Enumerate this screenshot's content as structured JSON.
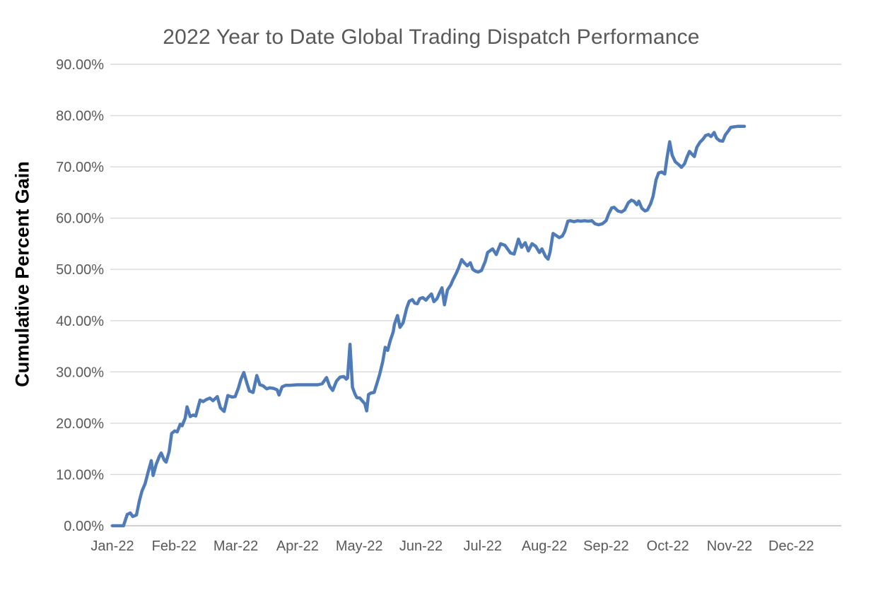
{
  "chart": {
    "title": "2022 Year to Date Global Trading Dispatch Performance",
    "ylabel": "Cumulative Percent Gain"
  },
  "colors": {
    "line": "#4f7bb8",
    "gridline": "#d9d9d9",
    "axis_line": "#bfbfbf",
    "title_text": "#595959",
    "tick_text": "#595959",
    "ylabel_text": "#000000",
    "background": "#ffffff"
  },
  "chart_data": {
    "type": "line",
    "title": "2022 Year to Date Global Trading Dispatch Performance",
    "xlabel": "",
    "ylabel": "Cumulative Percent Gain",
    "x_unit": "months since Jan-22 tick (0 = Jan-22, 11 = Dec-22)",
    "y_unit": "percent",
    "xlim": [
      -0.04,
      11.82
    ],
    "ylim": [
      0,
      90
    ],
    "grid": "horizontal",
    "legend": "none",
    "x_ticks": [
      {
        "value": 0,
        "label": "Jan-22"
      },
      {
        "value": 1,
        "label": "Feb-22"
      },
      {
        "value": 2,
        "label": "Mar-22"
      },
      {
        "value": 3,
        "label": "Apr-22"
      },
      {
        "value": 4,
        "label": "May-22"
      },
      {
        "value": 5,
        "label": "Jun-22"
      },
      {
        "value": 6,
        "label": "Jul-22"
      },
      {
        "value": 7,
        "label": "Aug-22"
      },
      {
        "value": 8,
        "label": "Sep-22"
      },
      {
        "value": 9,
        "label": "Oct-22"
      },
      {
        "value": 10,
        "label": "Nov-22"
      },
      {
        "value": 11,
        "label": "Dec-22"
      }
    ],
    "y_ticks": [
      {
        "value": 0,
        "label": "0.00%"
      },
      {
        "value": 10,
        "label": "10.00%"
      },
      {
        "value": 20,
        "label": "20.00%"
      },
      {
        "value": 30,
        "label": "30.00%"
      },
      {
        "value": 40,
        "label": "40.00%"
      },
      {
        "value": 50,
        "label": "50.00%"
      },
      {
        "value": 60,
        "label": "60.00%"
      },
      {
        "value": 70,
        "label": "70.00%"
      },
      {
        "value": 80,
        "label": "80.00%"
      },
      {
        "value": 90,
        "label": "90.00%"
      }
    ],
    "series": [
      {
        "name": "Cumulative percent gain",
        "points": [
          [
            0.0,
            0.0
          ],
          [
            0.18,
            0.0
          ],
          [
            0.24,
            2.2
          ],
          [
            0.29,
            2.5
          ],
          [
            0.33,
            1.8
          ],
          [
            0.39,
            2.1
          ],
          [
            0.44,
            5.0
          ],
          [
            0.48,
            6.8
          ],
          [
            0.53,
            8.2
          ],
          [
            0.58,
            10.5
          ],
          [
            0.63,
            12.7
          ],
          [
            0.66,
            9.8
          ],
          [
            0.71,
            12.0
          ],
          [
            0.76,
            13.5
          ],
          [
            0.79,
            14.2
          ],
          [
            0.84,
            12.8
          ],
          [
            0.87,
            12.4
          ],
          [
            0.92,
            14.5
          ],
          [
            0.96,
            18.0
          ],
          [
            1.01,
            18.5
          ],
          [
            1.05,
            18.3
          ],
          [
            1.1,
            19.8
          ],
          [
            1.13,
            19.5
          ],
          [
            1.18,
            21.0
          ],
          [
            1.21,
            23.2
          ],
          [
            1.26,
            21.3
          ],
          [
            1.31,
            21.6
          ],
          [
            1.35,
            21.4
          ],
          [
            1.42,
            24.5
          ],
          [
            1.47,
            24.2
          ],
          [
            1.52,
            24.6
          ],
          [
            1.58,
            24.9
          ],
          [
            1.63,
            24.4
          ],
          [
            1.7,
            25.2
          ],
          [
            1.75,
            23.0
          ],
          [
            1.81,
            22.3
          ],
          [
            1.87,
            25.4
          ],
          [
            1.94,
            25.1
          ],
          [
            1.99,
            25.2
          ],
          [
            2.04,
            26.8
          ],
          [
            2.08,
            28.5
          ],
          [
            2.13,
            29.9
          ],
          [
            2.18,
            27.8
          ],
          [
            2.22,
            26.3
          ],
          [
            2.28,
            26.0
          ],
          [
            2.34,
            29.3
          ],
          [
            2.39,
            27.5
          ],
          [
            2.44,
            27.3
          ],
          [
            2.5,
            26.7
          ],
          [
            2.55,
            26.9
          ],
          [
            2.61,
            26.8
          ],
          [
            2.67,
            26.5
          ],
          [
            2.7,
            25.5
          ],
          [
            2.75,
            27.1
          ],
          [
            2.81,
            27.4
          ],
          [
            2.88,
            27.4
          ],
          [
            2.99,
            27.5
          ],
          [
            3.1,
            27.5
          ],
          [
            3.22,
            27.5
          ],
          [
            3.33,
            27.5
          ],
          [
            3.4,
            27.7
          ],
          [
            3.47,
            28.9
          ],
          [
            3.52,
            27.2
          ],
          [
            3.57,
            26.4
          ],
          [
            3.63,
            28.2
          ],
          [
            3.69,
            29.0
          ],
          [
            3.75,
            29.1
          ],
          [
            3.79,
            28.6
          ],
          [
            3.81,
            28.8
          ],
          [
            3.85,
            35.4
          ],
          [
            3.89,
            27.0
          ],
          [
            3.93,
            25.7
          ],
          [
            3.96,
            25.0
          ],
          [
            4.01,
            24.9
          ],
          [
            4.06,
            24.2
          ],
          [
            4.09,
            23.8
          ],
          [
            4.12,
            22.4
          ],
          [
            4.15,
            25.6
          ],
          [
            4.19,
            25.9
          ],
          [
            4.24,
            26.0
          ],
          [
            4.28,
            27.5
          ],
          [
            4.33,
            29.5
          ],
          [
            4.38,
            32.0
          ],
          [
            4.42,
            34.8
          ],
          [
            4.46,
            34.2
          ],
          [
            4.5,
            36.0
          ],
          [
            4.55,
            37.8
          ],
          [
            4.57,
            39.3
          ],
          [
            4.62,
            41.0
          ],
          [
            4.66,
            38.7
          ],
          [
            4.71,
            39.6
          ],
          [
            4.77,
            42.5
          ],
          [
            4.81,
            43.8
          ],
          [
            4.86,
            44.1
          ],
          [
            4.9,
            43.4
          ],
          [
            4.94,
            43.3
          ],
          [
            4.98,
            44.3
          ],
          [
            5.03,
            44.5
          ],
          [
            5.08,
            44.0
          ],
          [
            5.12,
            44.6
          ],
          [
            5.17,
            45.2
          ],
          [
            5.21,
            43.7
          ],
          [
            5.26,
            44.3
          ],
          [
            5.3,
            45.4
          ],
          [
            5.34,
            46.4
          ],
          [
            5.38,
            43.1
          ],
          [
            5.43,
            46.0
          ],
          [
            5.48,
            46.9
          ],
          [
            5.52,
            48.0
          ],
          [
            5.57,
            49.2
          ],
          [
            5.61,
            50.3
          ],
          [
            5.66,
            51.9
          ],
          [
            5.7,
            51.3
          ],
          [
            5.75,
            50.7
          ],
          [
            5.8,
            51.3
          ],
          [
            5.84,
            50.0
          ],
          [
            5.89,
            49.6
          ],
          [
            5.93,
            49.5
          ],
          [
            5.98,
            49.8
          ],
          [
            6.04,
            51.5
          ],
          [
            6.08,
            53.3
          ],
          [
            6.16,
            54.0
          ],
          [
            6.22,
            52.9
          ],
          [
            6.29,
            55.0
          ],
          [
            6.36,
            54.7
          ],
          [
            6.45,
            53.2
          ],
          [
            6.51,
            53.0
          ],
          [
            6.58,
            55.9
          ],
          [
            6.63,
            54.3
          ],
          [
            6.69,
            55.2
          ],
          [
            6.74,
            53.6
          ],
          [
            6.8,
            55.0
          ],
          [
            6.86,
            54.5
          ],
          [
            6.92,
            53.3
          ],
          [
            6.96,
            54.0
          ],
          [
            7.02,
            52.5
          ],
          [
            7.06,
            52.0
          ],
          [
            7.09,
            53.3
          ],
          [
            7.14,
            57.0
          ],
          [
            7.19,
            56.6
          ],
          [
            7.24,
            56.2
          ],
          [
            7.29,
            56.5
          ],
          [
            7.33,
            57.4
          ],
          [
            7.38,
            59.4
          ],
          [
            7.42,
            59.5
          ],
          [
            7.48,
            59.3
          ],
          [
            7.54,
            59.5
          ],
          [
            7.59,
            59.4
          ],
          [
            7.65,
            59.5
          ],
          [
            7.71,
            59.4
          ],
          [
            7.77,
            59.5
          ],
          [
            7.82,
            58.9
          ],
          [
            7.88,
            58.7
          ],
          [
            7.94,
            58.9
          ],
          [
            8.0,
            59.5
          ],
          [
            8.04,
            60.8
          ],
          [
            8.09,
            62.0
          ],
          [
            8.13,
            62.1
          ],
          [
            8.19,
            61.4
          ],
          [
            8.25,
            61.2
          ],
          [
            8.3,
            61.6
          ],
          [
            8.36,
            63.0
          ],
          [
            8.41,
            63.5
          ],
          [
            8.45,
            63.3
          ],
          [
            8.5,
            62.6
          ],
          [
            8.53,
            63.3
          ],
          [
            8.58,
            61.9
          ],
          [
            8.63,
            61.4
          ],
          [
            8.67,
            61.6
          ],
          [
            8.72,
            62.8
          ],
          [
            8.76,
            64.2
          ],
          [
            8.81,
            67.5
          ],
          [
            8.85,
            68.8
          ],
          [
            8.9,
            69.0
          ],
          [
            8.95,
            68.6
          ],
          [
            8.99,
            72.0
          ],
          [
            9.03,
            74.9
          ],
          [
            9.07,
            72.3
          ],
          [
            9.12,
            71.0
          ],
          [
            9.18,
            70.4
          ],
          [
            9.22,
            69.9
          ],
          [
            9.27,
            70.6
          ],
          [
            9.31,
            71.9
          ],
          [
            9.35,
            73.0
          ],
          [
            9.39,
            72.5
          ],
          [
            9.43,
            72.0
          ],
          [
            9.47,
            73.8
          ],
          [
            9.52,
            74.8
          ],
          [
            9.57,
            75.4
          ],
          [
            9.61,
            76.1
          ],
          [
            9.66,
            76.3
          ],
          [
            9.7,
            75.9
          ],
          [
            9.75,
            76.7
          ],
          [
            9.79,
            75.6
          ],
          [
            9.84,
            75.1
          ],
          [
            9.89,
            75.0
          ],
          [
            9.93,
            76.2
          ],
          [
            9.98,
            77.0
          ],
          [
            10.02,
            77.7
          ],
          [
            10.07,
            77.8
          ],
          [
            10.13,
            77.9
          ],
          [
            10.18,
            77.9
          ],
          [
            10.24,
            77.9
          ]
        ]
      }
    ]
  }
}
